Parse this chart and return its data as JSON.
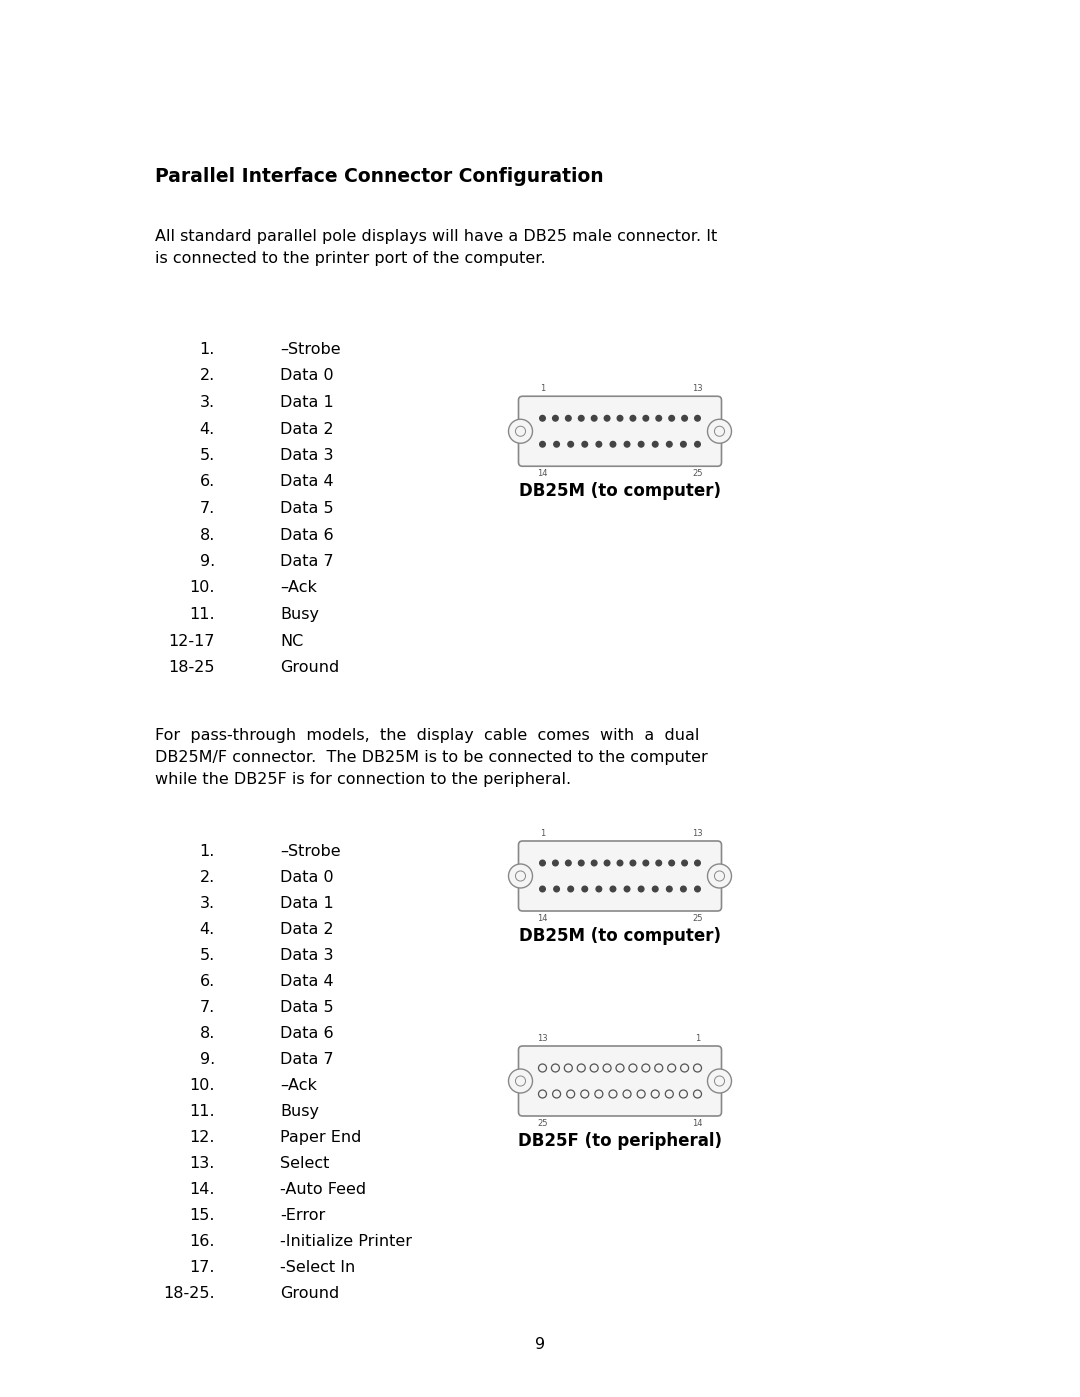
{
  "title": "Parallel Interface Connector Configuration",
  "intro_text": "All standard parallel pole displays will have a DB25 male connector. It\nis connected to the printer port of the computer.",
  "section1_list": [
    [
      "1.",
      "–Strobe"
    ],
    [
      "2.",
      "Data 0"
    ],
    [
      "3.",
      "Data 1"
    ],
    [
      "4.",
      "Data 2"
    ],
    [
      "5.",
      "Data 3"
    ],
    [
      "6.",
      "Data 4"
    ],
    [
      "7.",
      "Data 5"
    ],
    [
      "8.",
      "Data 6"
    ],
    [
      "9.",
      "Data 7"
    ],
    [
      "10.",
      "–Ack"
    ],
    [
      "11.",
      "Busy"
    ],
    [
      "12-17",
      "NC"
    ],
    [
      "18-25",
      "Ground"
    ]
  ],
  "section1_connector_label": "DB25M (to computer)",
  "section2_intro_line1": "For  pass-through  models,  the  display  cable  comes  with  a  dual",
  "section2_intro_line2": "DB25M/F connector.  The DB25M is to be connected to the computer",
  "section2_intro_line3": "while the DB25F is for connection to the peripheral.",
  "section2_list": [
    [
      "1.",
      "–Strobe"
    ],
    [
      "2.",
      "Data 0"
    ],
    [
      "3.",
      "Data 1"
    ],
    [
      "4.",
      "Data 2"
    ],
    [
      "5.",
      "Data 3"
    ],
    [
      "6.",
      "Data 4"
    ],
    [
      "7.",
      "Data 5"
    ],
    [
      "8.",
      "Data 6"
    ],
    [
      "9.",
      "Data 7"
    ],
    [
      "10.",
      "–Ack"
    ],
    [
      "11.",
      "Busy"
    ],
    [
      "12.",
      "Paper End"
    ],
    [
      "13.",
      "Select"
    ],
    [
      "14.",
      "-Auto Feed"
    ],
    [
      "15.",
      "-Error"
    ],
    [
      "16.",
      "-Initialize Printer"
    ],
    [
      "17.",
      "-Select In"
    ],
    [
      "18-25.",
      "Ground"
    ]
  ],
  "section2_connector1_label": "DB25M (to computer)",
  "section2_connector2_label": "DB25F (to peripheral)",
  "page_number": "9",
  "bg_color": "#ffffff",
  "text_color": "#000000"
}
